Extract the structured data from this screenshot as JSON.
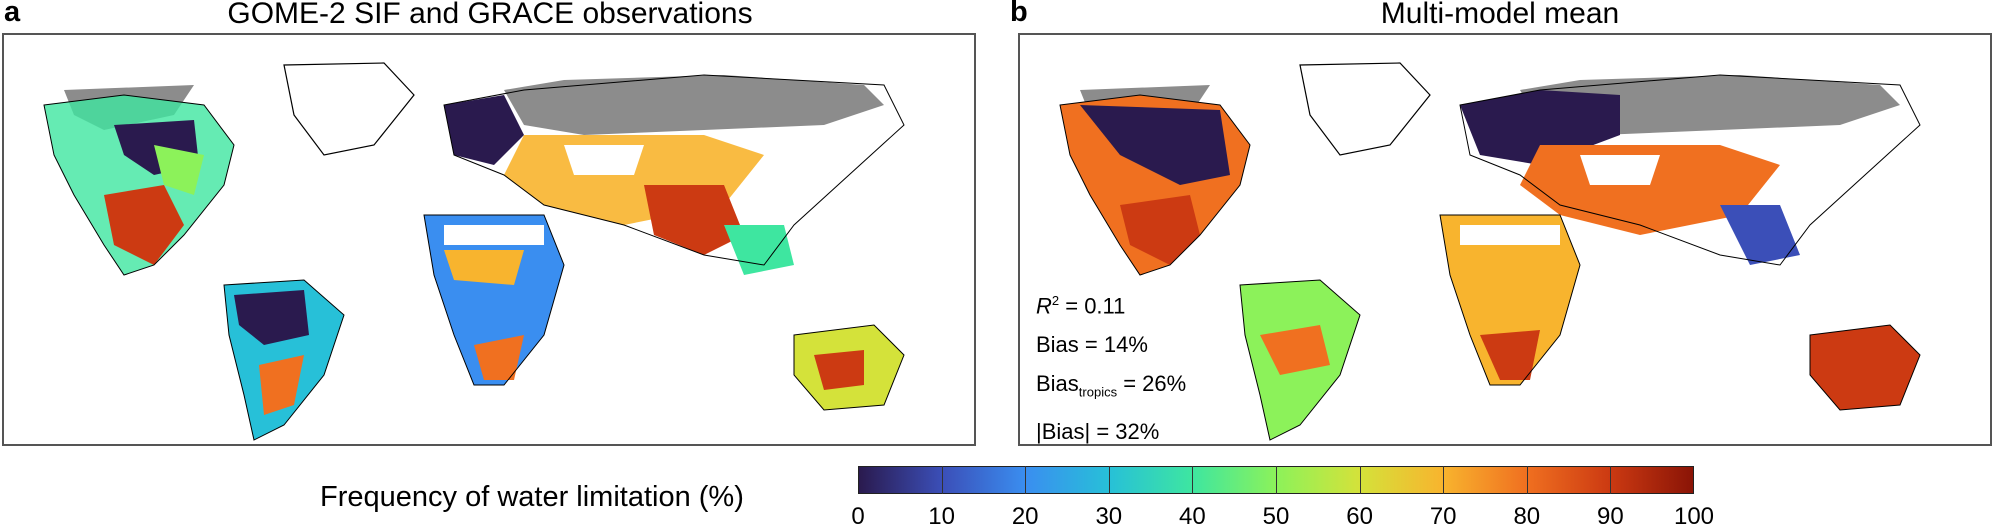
{
  "panels": [
    {
      "letter": "a",
      "title": "GOME-2 SIF and GRACE observations"
    },
    {
      "letter": "b",
      "title": "Multi-model mean"
    }
  ],
  "stats": {
    "r2_symbol": "R",
    "r2_sup": "2",
    "r2_value": " = 0.11",
    "bias": "Bias = 14%",
    "bias_tropics_main": "Bias",
    "bias_tropics_sub": "tropics",
    "bias_tropics_value": " = 26%",
    "abs_bias": "|Bias| = 32%"
  },
  "colorbar": {
    "label": "Frequency of water limitation (%)",
    "ticks": [
      "0",
      "10",
      "20",
      "30",
      "40",
      "50",
      "60",
      "70",
      "80",
      "90",
      "100"
    ],
    "range": [
      0,
      100
    ],
    "colors": [
      "#2a1a4e",
      "#3b4fb8",
      "#3a8ef0",
      "#27c0d8",
      "#3ee6a0",
      "#8cf25a",
      "#d4e23a",
      "#f8b42e",
      "#f07020",
      "#cc3a12",
      "#8a1406"
    ]
  },
  "map_colors": {
    "no_data": "#8c8c8c",
    "ocean": "#ffffff",
    "coast": "#000000"
  }
}
